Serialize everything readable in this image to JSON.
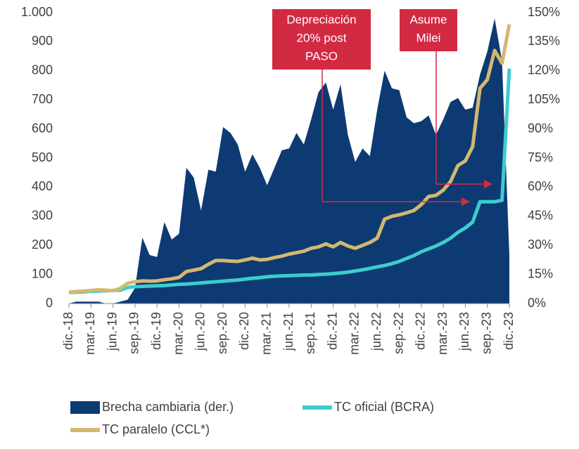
{
  "chart_data": {
    "type": "area_line",
    "categories": [
      "dic.-18",
      null,
      null,
      "mar.-19",
      null,
      null,
      "jun.-19",
      null,
      null,
      "sep.-19",
      null,
      null,
      "dic.-19",
      null,
      null,
      "mar.-20",
      null,
      null,
      "jun.-20",
      null,
      null,
      "sep.-20",
      null,
      null,
      "dic.-20",
      null,
      null,
      "mar.-21",
      null,
      null,
      "jun.-21",
      null,
      null,
      "sep.-21",
      null,
      null,
      "dic.-21",
      null,
      null,
      "mar.-22",
      null,
      null,
      "jun.-22",
      null,
      null,
      "sep.-22",
      null,
      null,
      "dic.-22",
      null,
      null,
      "mar.-23",
      null,
      null,
      "jun.-23",
      null,
      null,
      "sep.-23",
      null,
      null,
      "dic.-23"
    ],
    "series": [
      {
        "name": "Brecha cambiaria (der.)",
        "color": "#0d3a73",
        "kind": "area",
        "axis": "y2",
        "values": [
          0,
          1,
          1,
          1,
          1,
          0,
          0,
          1,
          2,
          8,
          34,
          25,
          24,
          42,
          33,
          36,
          70,
          65,
          48,
          69,
          68,
          91,
          88,
          82,
          68,
          77,
          70,
          61,
          70,
          79,
          80,
          88,
          82,
          95,
          109,
          114,
          100,
          113,
          87,
          73,
          80,
          76,
          100,
          120,
          111,
          110,
          96,
          93,
          94,
          97,
          87,
          95,
          104,
          106,
          100,
          101,
          118,
          130,
          147,
          125,
          25
        ]
      },
      {
        "name": "TC oficial (BCRA)",
        "color": "#3cccd0",
        "kind": "line",
        "values": [
          38,
          39,
          40,
          42,
          43,
          44,
          45,
          46,
          55,
          58,
          59,
          60,
          61,
          62,
          64,
          66,
          67,
          69,
          71,
          73,
          75,
          77,
          79,
          81,
          84,
          87,
          89,
          92,
          94,
          95,
          96,
          97,
          98,
          98,
          100,
          101,
          103,
          105,
          108,
          112,
          116,
          121,
          126,
          131,
          137,
          145,
          155,
          165,
          178,
          188,
          198,
          210,
          225,
          245,
          260,
          280,
          350,
          350,
          350,
          355,
          808
        ]
      },
      {
        "name": "TC paralelo (CCL*)",
        "color": "#d4b86e",
        "kind": "line",
        "values": [
          39,
          41,
          43,
          45,
          47,
          46,
          44,
          52,
          70,
          75,
          78,
          77,
          78,
          82,
          85,
          90,
          110,
          115,
          120,
          135,
          148,
          148,
          146,
          145,
          150,
          156,
          150,
          152,
          158,
          163,
          170,
          175,
          180,
          190,
          195,
          205,
          195,
          210,
          198,
          190,
          200,
          210,
          225,
          290,
          300,
          305,
          312,
          320,
          340,
          368,
          372,
          390,
          420,
          475,
          490,
          540,
          740,
          770,
          870,
          826,
          960
        ]
      }
    ],
    "ylim": [
      0,
      1000
    ],
    "yticks": [
      0,
      100,
      200,
      300,
      400,
      500,
      600,
      700,
      800,
      900,
      {
        "value": 1000,
        "label": "1.000"
      }
    ],
    "y2lim": [
      0,
      150
    ],
    "y2ticks": [
      {
        "value": 0,
        "label": "0%"
      },
      {
        "value": 15,
        "label": "15%"
      },
      {
        "value": 30,
        "label": "30%"
      },
      {
        "value": 45,
        "label": "45%"
      },
      {
        "value": 60,
        "label": "60%"
      },
      {
        "value": 75,
        "label": "75%"
      },
      {
        "value": 90,
        "label": "90%"
      },
      {
        "value": 105,
        "label": "105%"
      },
      {
        "value": 120,
        "label": "120%"
      },
      {
        "value": 135,
        "label": "135%"
      },
      {
        "value": 150,
        "label": "150%"
      }
    ],
    "annotations": [
      {
        "lines": [
          "Depreciación",
          "20% post",
          "PASO"
        ],
        "color": "#d32a44"
      },
      {
        "lines": [
          "Asume",
          "Milei"
        ],
        "color": "#d32a44"
      }
    ],
    "legend": "bottom"
  }
}
